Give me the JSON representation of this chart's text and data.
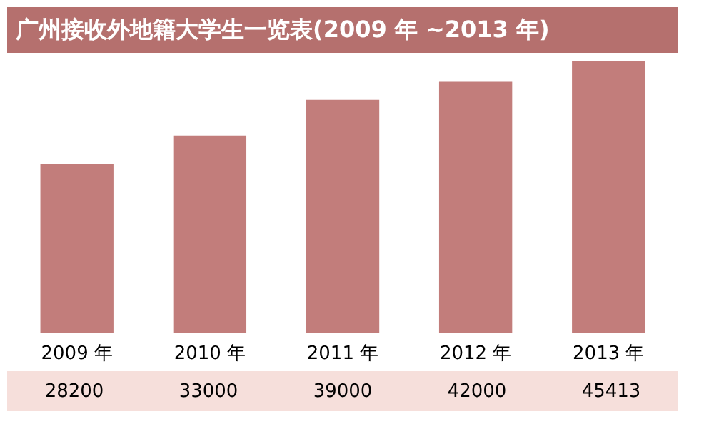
{
  "chart_data": {
    "type": "bar",
    "title": "广州接收外地籍大学生一览表(2009 年 ~2013 年)",
    "categories": [
      "2009 年",
      "2010 年",
      "2011 年",
      "2012 年",
      "2013 年"
    ],
    "values": [
      28200,
      33000,
      39000,
      42000,
      45413
    ],
    "color": "#c27d7b",
    "data_labels": true
  }
}
